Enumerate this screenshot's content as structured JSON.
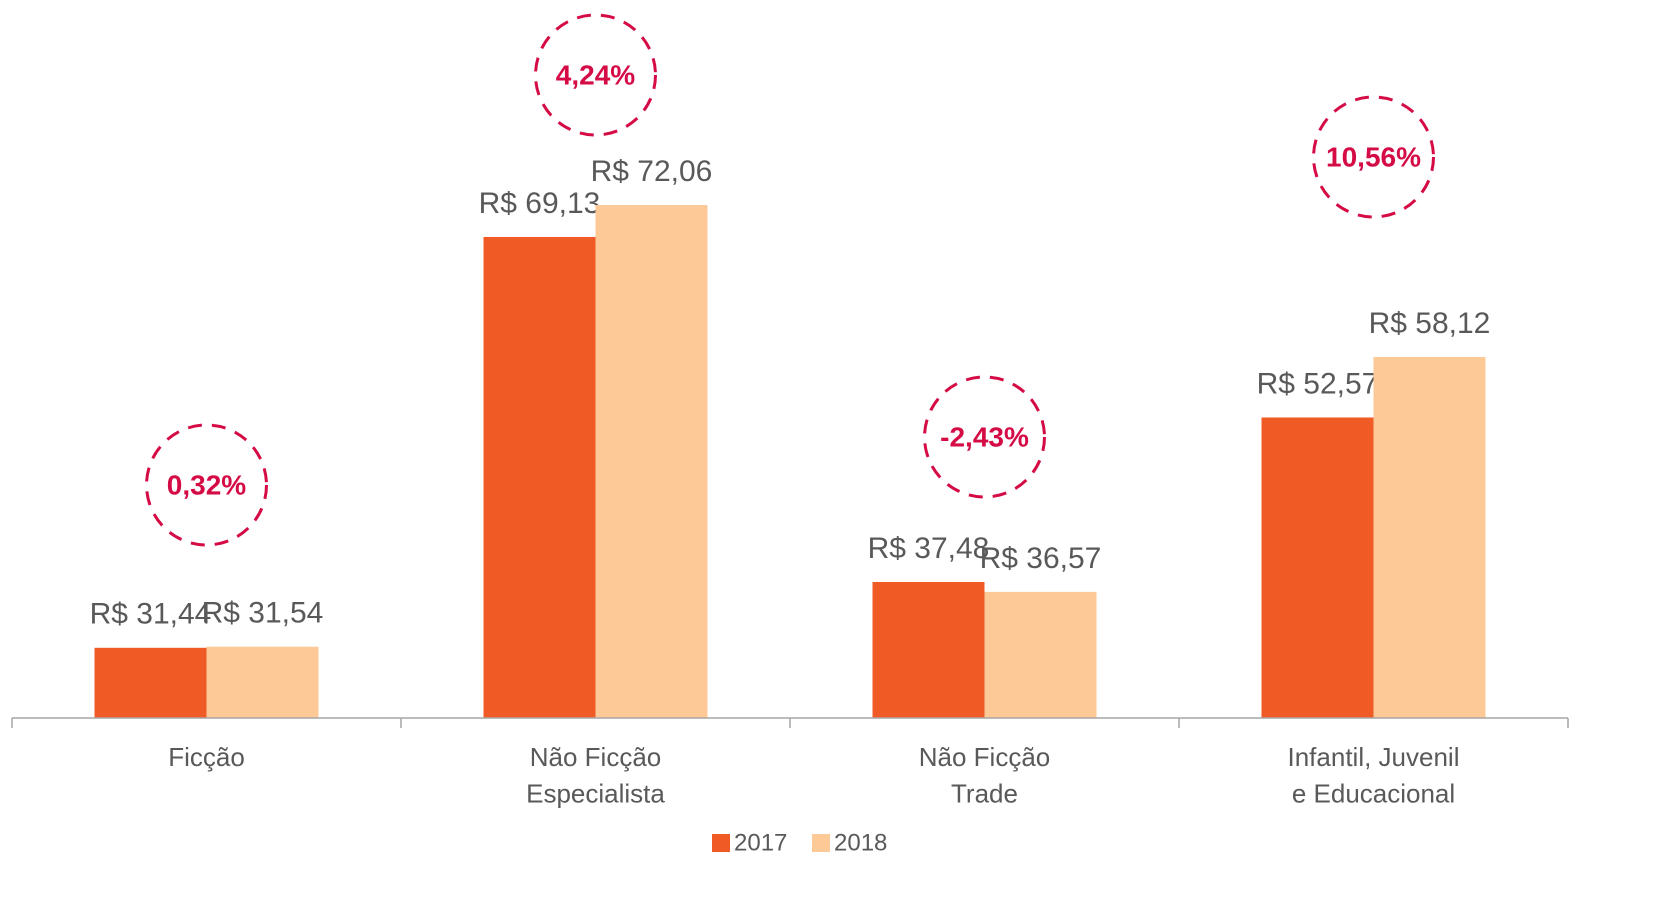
{
  "chart_data": {
    "type": "bar",
    "categories": [
      "Ficção",
      "Não Ficção\nEspecialista",
      "Não Ficção\nTrade",
      "Infantil, Juvenil\ne Educacional"
    ],
    "series": [
      {
        "name": "2017",
        "color": "#f05a24",
        "values": [
          31.44,
          69.13,
          37.48,
          52.57
        ],
        "value_labels": [
          "R$ 31,44",
          "R$ 69,13",
          "R$ 37,48",
          "R$ 52,57"
        ]
      },
      {
        "name": "2018",
        "color": "#fdca97",
        "values": [
          31.54,
          72.06,
          36.57,
          58.12
        ],
        "value_labels": [
          "R$ 31,54",
          "R$ 72,06",
          "R$ 36,57",
          "R$ 58,12"
        ]
      }
    ],
    "annotations": [
      "0,32%",
      "4,24%",
      "-2,43%",
      "10,56%"
    ],
    "annotation_color": "#d50b45",
    "ylim": [
      25,
      90
    ],
    "legend": "bottom"
  }
}
